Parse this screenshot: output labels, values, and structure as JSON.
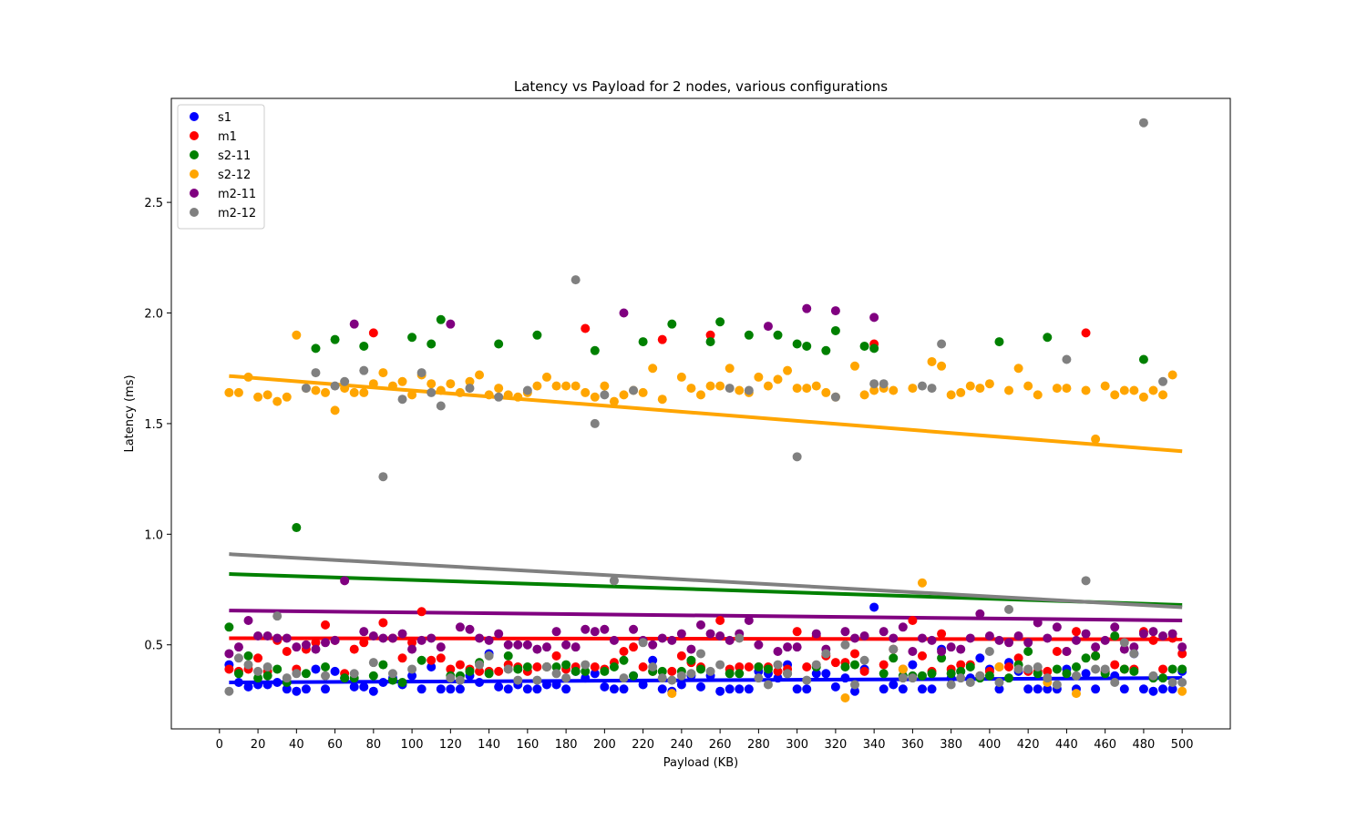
{
  "chart_data": {
    "type": "scatter",
    "title": "Latency vs Payload for 2 nodes, various configurations",
    "xlabel": "Payload (KB)",
    "ylabel": "Latency (ms)",
    "xlim": [
      -25,
      525
    ],
    "ylim": [
      0.12,
      2.97
    ],
    "xticks": [
      0,
      20,
      40,
      60,
      80,
      100,
      120,
      140,
      160,
      180,
      200,
      220,
      240,
      260,
      280,
      300,
      320,
      340,
      360,
      380,
      400,
      420,
      440,
      460,
      480,
      500
    ],
    "yticks": [
      0.5,
      1.0,
      1.5,
      2.0,
      2.5
    ],
    "grid": false,
    "legend_position": "top-left",
    "x": [
      5,
      10,
      15,
      20,
      25,
      30,
      35,
      40,
      45,
      50,
      55,
      60,
      65,
      70,
      75,
      80,
      85,
      90,
      95,
      100,
      105,
      110,
      115,
      120,
      125,
      130,
      135,
      140,
      145,
      150,
      155,
      160,
      165,
      170,
      175,
      180,
      185,
      190,
      195,
      200,
      205,
      210,
      215,
      220,
      225,
      230,
      235,
      240,
      245,
      250,
      255,
      260,
      265,
      270,
      275,
      280,
      285,
      290,
      295,
      300,
      305,
      310,
      315,
      320,
      325,
      330,
      335,
      340,
      345,
      350,
      355,
      360,
      365,
      370,
      375,
      380,
      385,
      390,
      395,
      400,
      405,
      410,
      415,
      420,
      425,
      430,
      435,
      440,
      445,
      450,
      455,
      460,
      465,
      470,
      475,
      480,
      485,
      490,
      495,
      500
    ],
    "series": [
      {
        "name": "s1",
        "color": "#0000ff",
        "values": [
          0.41,
          0.33,
          0.31,
          0.32,
          0.32,
          0.33,
          0.3,
          0.29,
          0.3,
          0.39,
          0.3,
          0.38,
          0.35,
          0.31,
          0.31,
          0.29,
          0.33,
          0.35,
          0.32,
          0.36,
          0.3,
          0.4,
          0.3,
          0.3,
          0.3,
          0.36,
          0.33,
          0.46,
          0.31,
          0.3,
          0.32,
          0.3,
          0.3,
          0.32,
          0.32,
          0.3,
          0.38,
          0.35,
          0.37,
          0.31,
          0.3,
          0.3,
          0.36,
          0.32,
          0.43,
          0.3,
          0.29,
          0.32,
          0.36,
          0.31,
          0.36,
          0.29,
          0.3,
          0.3,
          0.3,
          0.38,
          0.37,
          0.35,
          0.41,
          0.3,
          0.3,
          0.37,
          0.37,
          0.31,
          0.35,
          0.29,
          0.39,
          0.67,
          0.3,
          0.32,
          0.3,
          0.41,
          0.3,
          0.3,
          0.48,
          0.35,
          0.38,
          0.35,
          0.44,
          0.39,
          0.3,
          0.42,
          0.38,
          0.3,
          0.3,
          0.3,
          0.3,
          0.39,
          0.3,
          0.37,
          0.3,
          0.38,
          0.36,
          0.3,
          0.46,
          0.3,
          0.29,
          0.3,
          0.3,
          0.38
        ]
      },
      {
        "name": "m1",
        "color": "#ff0000",
        "values": [
          0.39,
          0.38,
          0.39,
          0.44,
          0.38,
          0.52,
          0.47,
          0.39,
          0.48,
          0.51,
          0.59,
          0.52,
          0.37,
          0.48,
          0.51,
          1.91,
          0.6,
          0.53,
          0.44,
          0.51,
          0.65,
          0.43,
          0.44,
          0.39,
          0.41,
          0.39,
          0.38,
          0.38,
          0.38,
          0.41,
          0.4,
          0.38,
          0.4,
          0.4,
          0.45,
          0.39,
          0.4,
          1.93,
          0.4,
          0.39,
          0.42,
          0.47,
          0.49,
          0.4,
          0.38,
          1.88,
          0.38,
          0.45,
          0.42,
          0.4,
          1.9,
          0.61,
          0.39,
          0.4,
          0.4,
          0.4,
          0.4,
          0.38,
          0.39,
          0.56,
          0.4,
          0.54,
          0.45,
          0.42,
          0.42,
          0.46,
          0.38,
          1.86,
          0.41,
          0.48,
          0.39,
          0.61,
          0.45,
          0.38,
          0.55,
          0.39,
          0.41,
          0.41,
          0.36,
          0.38,
          0.4,
          0.4,
          0.44,
          0.38,
          0.38,
          0.38,
          0.47,
          0.47,
          0.56,
          1.91,
          0.45,
          0.38,
          0.41,
          0.39,
          0.39,
          0.56,
          0.52,
          0.39,
          0.53,
          0.46
        ]
      },
      {
        "name": "s2-11",
        "color": "#008000",
        "values": [
          0.58,
          0.37,
          0.45,
          0.35,
          0.36,
          0.39,
          0.33,
          1.03,
          0.37,
          1.84,
          0.4,
          1.88,
          0.35,
          0.35,
          1.85,
          0.36,
          0.41,
          0.34,
          0.33,
          1.89,
          0.43,
          1.86,
          1.97,
          0.36,
          0.36,
          0.38,
          0.42,
          0.37,
          1.86,
          0.45,
          0.39,
          0.4,
          1.9,
          0.4,
          0.4,
          0.41,
          0.38,
          0.38,
          1.83,
          0.38,
          0.4,
          0.43,
          0.36,
          1.87,
          0.38,
          0.38,
          1.95,
          0.38,
          0.43,
          0.39,
          1.87,
          1.96,
          0.37,
          0.37,
          1.9,
          0.4,
          0.39,
          1.9,
          0.37,
          1.86,
          1.85,
          0.4,
          1.83,
          1.92,
          0.4,
          0.41,
          1.85,
          1.84,
          0.37,
          0.44,
          0.36,
          0.36,
          0.36,
          0.37,
          0.44,
          0.37,
          0.38,
          0.4,
          0.35,
          0.36,
          1.87,
          0.35,
          0.41,
          0.47,
          0.37,
          1.89,
          0.39,
          0.37,
          0.4,
          0.44,
          0.45,
          0.37,
          0.54,
          0.39,
          0.38,
          1.79,
          0.35,
          0.35,
          0.39,
          0.39
        ]
      },
      {
        "name": "s2-12",
        "color": "#ffa500",
        "values": [
          1.64,
          1.64,
          1.71,
          1.62,
          1.63,
          1.6,
          1.62,
          1.9,
          1.66,
          1.65,
          1.64,
          1.56,
          1.66,
          1.64,
          1.64,
          1.68,
          1.73,
          1.67,
          1.69,
          1.63,
          1.72,
          1.68,
          1.65,
          1.68,
          1.64,
          1.69,
          1.72,
          1.63,
          1.66,
          1.63,
          1.62,
          1.64,
          1.67,
          1.71,
          1.67,
          1.67,
          1.67,
          1.64,
          1.62,
          1.67,
          1.6,
          1.63,
          1.65,
          1.64,
          1.75,
          1.61,
          0.28,
          1.71,
          1.66,
          1.63,
          1.67,
          1.67,
          1.75,
          1.65,
          1.64,
          1.71,
          1.67,
          1.7,
          1.74,
          1.66,
          1.66,
          1.67,
          1.64,
          1.62,
          0.26,
          1.76,
          1.63,
          1.65,
          1.66,
          1.65,
          0.39,
          1.66,
          0.78,
          1.78,
          1.76,
          1.63,
          1.64,
          1.67,
          1.66,
          1.68,
          0.4,
          1.65,
          1.75,
          1.67,
          1.63,
          0.33,
          1.66,
          1.66,
          0.28,
          1.65,
          1.43,
          1.67,
          1.63,
          1.65,
          1.65,
          1.62,
          1.65,
          1.63,
          1.72,
          0.29
        ]
      },
      {
        "name": "m2-11",
        "color": "#800080",
        "values": [
          0.46,
          0.49,
          0.61,
          0.54,
          0.54,
          0.53,
          0.53,
          0.49,
          0.5,
          0.48,
          0.51,
          0.52,
          0.79,
          1.95,
          0.56,
          0.54,
          0.53,
          0.53,
          0.55,
          0.48,
          0.52,
          0.53,
          0.49,
          1.95,
          0.58,
          0.57,
          0.53,
          0.52,
          0.55,
          0.5,
          0.5,
          0.5,
          0.48,
          0.49,
          0.56,
          0.5,
          0.49,
          0.57,
          0.56,
          0.57,
          0.52,
          2.0,
          0.57,
          0.52,
          0.5,
          0.53,
          0.52,
          0.55,
          0.48,
          0.59,
          0.55,
          0.54,
          0.52,
          0.55,
          0.61,
          0.5,
          1.94,
          0.47,
          0.49,
          0.49,
          2.02,
          0.55,
          0.48,
          2.01,
          0.56,
          0.53,
          0.54,
          1.98,
          0.56,
          0.53,
          0.58,
          0.47,
          0.53,
          0.52,
          0.47,
          0.49,
          0.48,
          0.53,
          0.64,
          0.54,
          0.52,
          0.51,
          0.54,
          0.51,
          0.6,
          0.53,
          0.58,
          0.47,
          0.52,
          0.55,
          0.49,
          0.52,
          0.58,
          0.48,
          0.49,
          0.55,
          0.56,
          0.54,
          0.55,
          0.49
        ]
      },
      {
        "name": "m2-12",
        "color": "#808080",
        "values": [
          0.29,
          0.44,
          0.41,
          0.38,
          0.4,
          0.63,
          0.35,
          0.37,
          1.66,
          1.73,
          0.36,
          1.67,
          1.69,
          0.37,
          1.74,
          0.42,
          1.26,
          0.37,
          1.61,
          0.39,
          1.73,
          1.64,
          1.58,
          0.35,
          0.34,
          1.66,
          0.41,
          0.45,
          1.62,
          0.39,
          0.34,
          1.65,
          0.34,
          0.4,
          0.37,
          0.35,
          2.15,
          0.41,
          1.5,
          1.63,
          0.79,
          0.35,
          1.65,
          0.51,
          0.4,
          0.35,
          0.34,
          0.36,
          0.37,
          0.46,
          0.38,
          0.41,
          1.66,
          0.53,
          1.65,
          0.35,
          0.32,
          0.41,
          0.37,
          1.35,
          0.34,
          0.41,
          0.46,
          1.62,
          0.5,
          0.32,
          0.43,
          1.68,
          1.68,
          0.48,
          0.35,
          0.35,
          1.67,
          1.66,
          1.86,
          0.32,
          0.35,
          0.33,
          0.36,
          0.47,
          0.33,
          0.66,
          0.39,
          0.39,
          0.4,
          0.35,
          0.32,
          1.79,
          0.36,
          0.79,
          0.39,
          0.39,
          0.33,
          0.51,
          0.46,
          2.86,
          0.36,
          1.69,
          0.33,
          0.33
        ]
      }
    ],
    "trendlines": [
      {
        "name": "s1",
        "color": "#0000ff",
        "x": [
          5,
          500
        ],
        "y": [
          0.33,
          0.35
        ]
      },
      {
        "name": "m1",
        "color": "#ff0000",
        "x": [
          5,
          500
        ],
        "y": [
          0.53,
          0.525
        ]
      },
      {
        "name": "s2-11",
        "color": "#008000",
        "x": [
          5,
          500
        ],
        "y": [
          0.82,
          0.68
        ]
      },
      {
        "name": "s2-12",
        "color": "#ffa500",
        "x": [
          5,
          500
        ],
        "y": [
          1.715,
          1.375
        ]
      },
      {
        "name": "m2-11",
        "color": "#800080",
        "x": [
          5,
          500
        ],
        "y": [
          0.655,
          0.61
        ]
      },
      {
        "name": "m2-12",
        "color": "#808080",
        "x": [
          5,
          500
        ],
        "y": [
          0.91,
          0.67
        ]
      }
    ]
  }
}
